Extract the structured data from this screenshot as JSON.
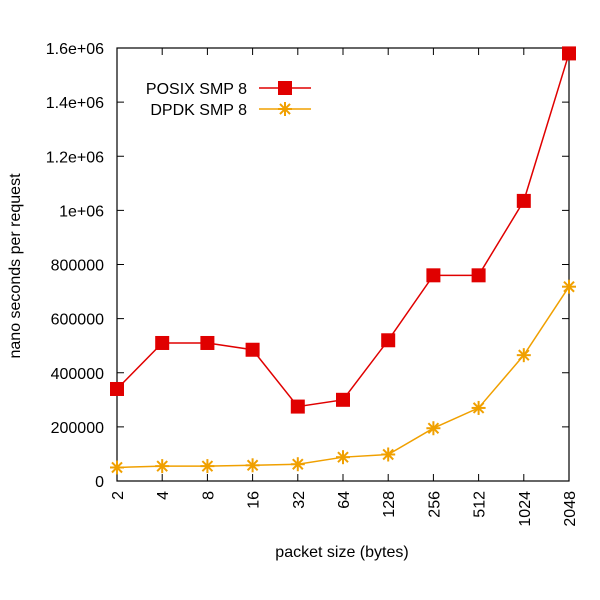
{
  "chart_data": {
    "type": "line",
    "title": "",
    "xlabel": "packet size (bytes)",
    "ylabel": "nano seconds per request",
    "categories": [
      "2",
      "4",
      "8",
      "16",
      "32",
      "64",
      "128",
      "256",
      "512",
      "1024",
      "2048"
    ],
    "ylim": [
      0,
      1600000
    ],
    "yticks": [
      {
        "value": 0,
        "label": "0"
      },
      {
        "value": 200000,
        "label": "200000"
      },
      {
        "value": 400000,
        "label": "400000"
      },
      {
        "value": 600000,
        "label": "600000"
      },
      {
        "value": 800000,
        "label": "800000"
      },
      {
        "value": 1000000,
        "label": "1e+06"
      },
      {
        "value": 1200000,
        "label": "1.2e+06"
      },
      {
        "value": 1400000,
        "label": "1.4e+06"
      },
      {
        "value": 1600000,
        "label": "1.6e+06"
      }
    ],
    "grid": false,
    "legend_position": "top-left",
    "series": [
      {
        "name": "POSIX SMP 8",
        "color": "#e00000",
        "marker": "square",
        "values": [
          340000,
          510000,
          510000,
          485000,
          275000,
          300000,
          520000,
          760000,
          760000,
          1035000,
          1580000
        ]
      },
      {
        "name": "DPDK SMP 8",
        "color": "#f0a000",
        "marker": "star",
        "values": [
          50000,
          55000,
          55000,
          58000,
          62000,
          88000,
          98000,
          195000,
          270000,
          465000,
          718000
        ]
      }
    ]
  }
}
